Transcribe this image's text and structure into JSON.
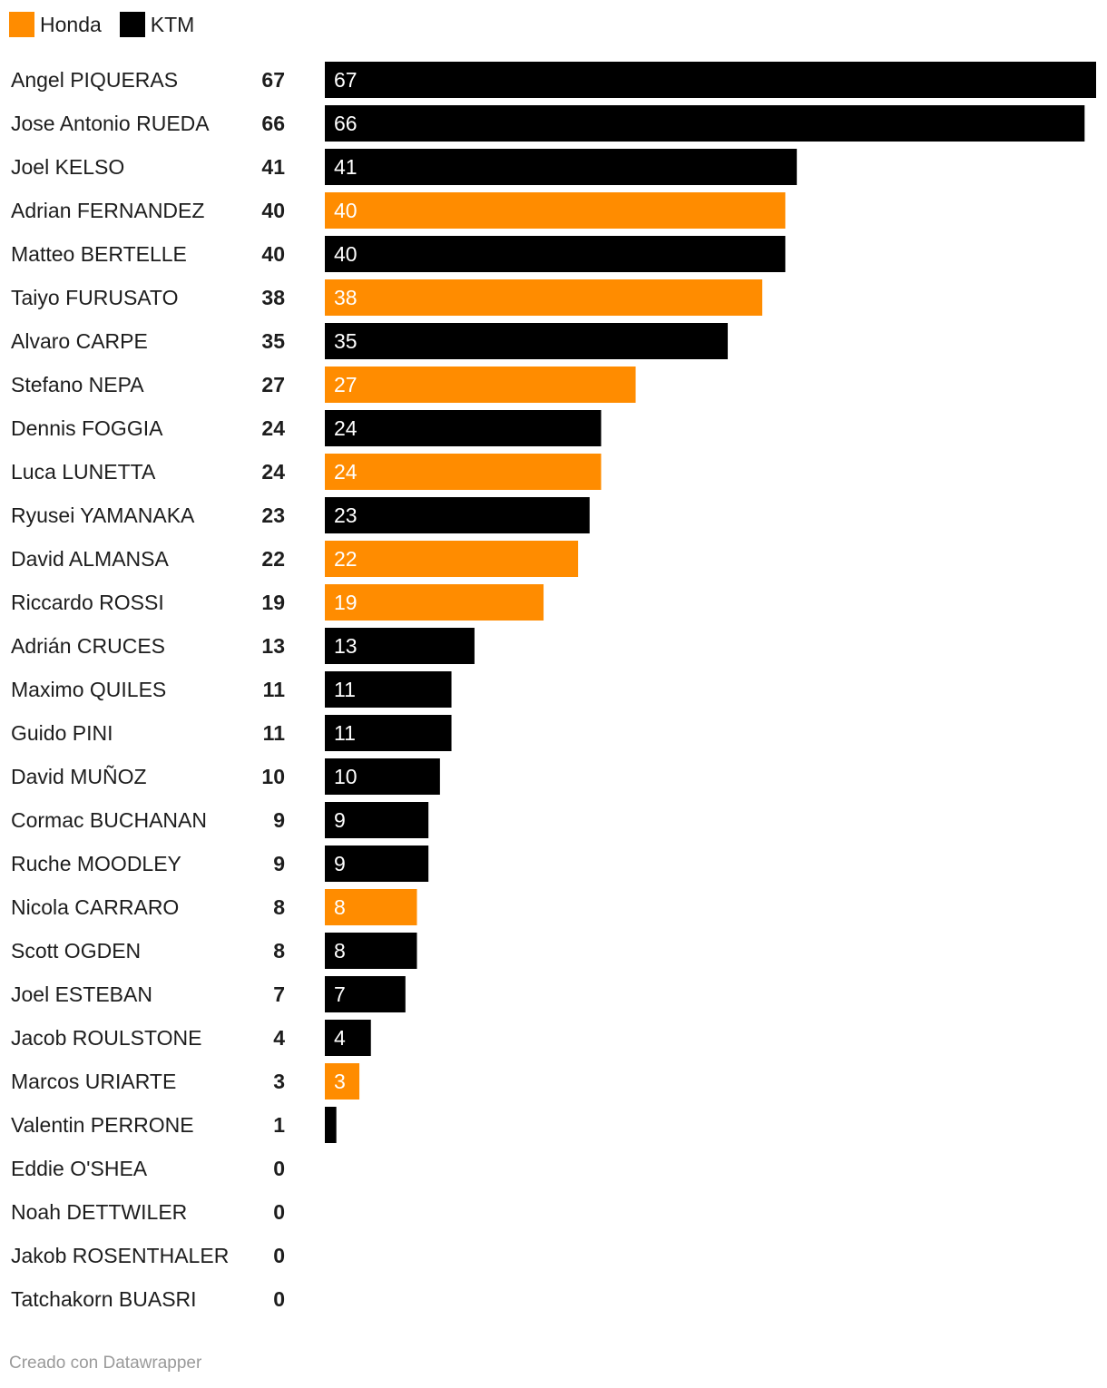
{
  "chart_data": {
    "type": "bar",
    "orientation": "horizontal",
    "legend_position": "top-left",
    "series_colors": {
      "Honda": "#ff8c00",
      "KTM": "#000000"
    },
    "xlim": [
      0,
      67
    ],
    "legend": [
      {
        "name": "Honda",
        "color": "#ff8c00"
      },
      {
        "name": "KTM",
        "color": "#000000"
      }
    ],
    "rows": [
      {
        "name": "Angel PIQUERAS",
        "value": 67,
        "team": "KTM"
      },
      {
        "name": "Jose Antonio RUEDA",
        "value": 66,
        "team": "KTM"
      },
      {
        "name": "Joel KELSO",
        "value": 41,
        "team": "KTM"
      },
      {
        "name": "Adrian FERNANDEZ",
        "value": 40,
        "team": "Honda"
      },
      {
        "name": "Matteo BERTELLE",
        "value": 40,
        "team": "KTM"
      },
      {
        "name": "Taiyo FURUSATO",
        "value": 38,
        "team": "Honda"
      },
      {
        "name": "Alvaro CARPE",
        "value": 35,
        "team": "KTM"
      },
      {
        "name": "Stefano NEPA",
        "value": 27,
        "team": "Honda"
      },
      {
        "name": "Dennis FOGGIA",
        "value": 24,
        "team": "KTM"
      },
      {
        "name": "Luca LUNETTA",
        "value": 24,
        "team": "Honda"
      },
      {
        "name": "Ryusei YAMANAKA",
        "value": 23,
        "team": "KTM"
      },
      {
        "name": "David ALMANSA",
        "value": 22,
        "team": "Honda"
      },
      {
        "name": "Riccardo ROSSI",
        "value": 19,
        "team": "Honda"
      },
      {
        "name": "Adrián CRUCES",
        "value": 13,
        "team": "KTM"
      },
      {
        "name": "Maximo QUILES",
        "value": 11,
        "team": "KTM"
      },
      {
        "name": "Guido PINI",
        "value": 11,
        "team": "KTM"
      },
      {
        "name": "David MUÑOZ",
        "value": 10,
        "team": "KTM"
      },
      {
        "name": "Cormac BUCHANAN",
        "value": 9,
        "team": "KTM"
      },
      {
        "name": "Ruche MOODLEY",
        "value": 9,
        "team": "KTM"
      },
      {
        "name": "Nicola CARRARO",
        "value": 8,
        "team": "Honda"
      },
      {
        "name": "Scott OGDEN",
        "value": 8,
        "team": "KTM"
      },
      {
        "name": "Joel ESTEBAN",
        "value": 7,
        "team": "KTM"
      },
      {
        "name": "Jacob ROULSTONE",
        "value": 4,
        "team": "KTM"
      },
      {
        "name": "Marcos URIARTE",
        "value": 3,
        "team": "Honda"
      },
      {
        "name": "Valentin PERRONE",
        "value": 1,
        "team": "KTM"
      },
      {
        "name": "Eddie O'SHEA",
        "value": 0,
        "team": "KTM"
      },
      {
        "name": "Noah DETTWILER",
        "value": 0,
        "team": "KTM"
      },
      {
        "name": "Jakob ROSENTHALER",
        "value": 0,
        "team": "KTM"
      },
      {
        "name": "Tatchakorn BUASRI",
        "value": 0,
        "team": "KTM"
      }
    ]
  },
  "footer": {
    "credit": "Creado con Datawrapper"
  }
}
